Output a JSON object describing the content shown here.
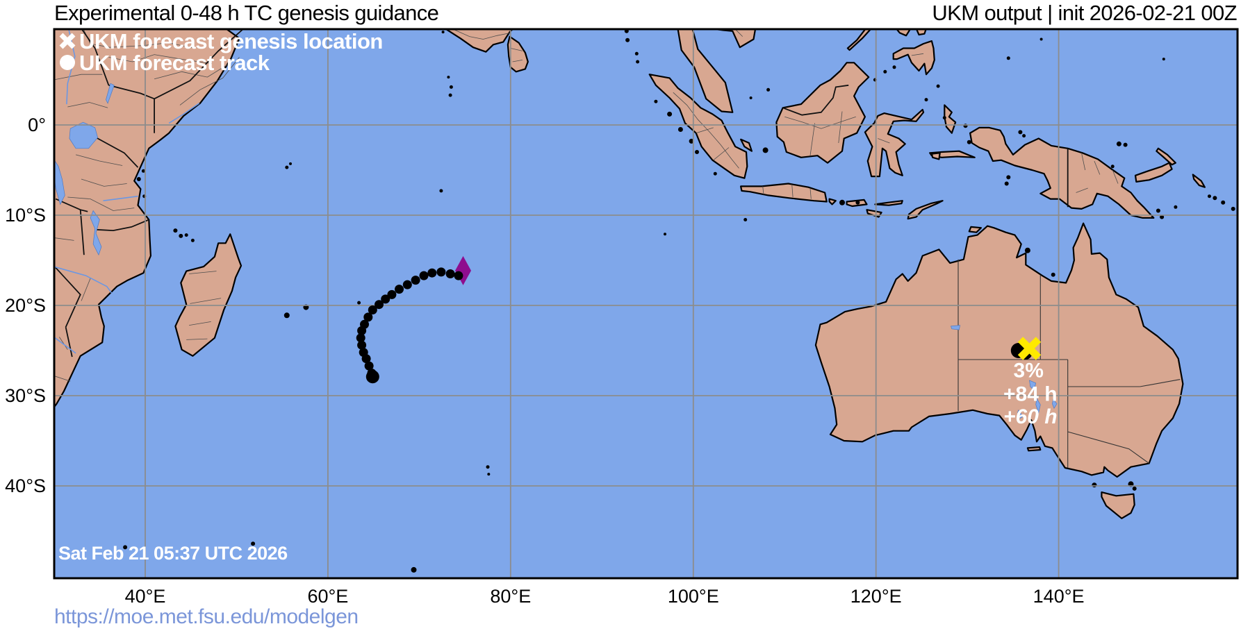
{
  "header": {
    "title_left": "Experimental 0-48 h TC genesis guidance",
    "title_right": "UKM output | init 2026-02-21 00Z"
  },
  "legend": {
    "text_color": "#ffffff",
    "items": [
      {
        "marker": "x",
        "label": "UKM forecast genesis location"
      },
      {
        "marker": "dot",
        "label": "UKM forecast track"
      }
    ]
  },
  "map": {
    "timestamp": "Sat Feb 21 05:37 UTC 2026",
    "extent": {
      "lon_min": 30.0,
      "lon_max": 159.6,
      "lat_min": -50.2,
      "lat_max": 10.8
    },
    "colors": {
      "ocean": "#7FA7EA",
      "land": "#D8A791",
      "coast": "#000000",
      "grid": "#8C8C8C",
      "border": "#000000",
      "river": "#6B97E3",
      "admin": "#4d4d4d"
    }
  },
  "axes": {
    "lon_ticks": [
      {
        "label": "40°E",
        "value": 40
      },
      {
        "label": "60°E",
        "value": 60
      },
      {
        "label": "80°E",
        "value": 80
      },
      {
        "label": "100°E",
        "value": 100
      },
      {
        "label": "120°E",
        "value": 120
      },
      {
        "label": "140°E",
        "value": 140
      }
    ],
    "lat_ticks": [
      {
        "label": "0°",
        "value": 0
      },
      {
        "label": "10°S",
        "value": -10
      },
      {
        "label": "20°S",
        "value": -20
      },
      {
        "label": "30°S",
        "value": -30
      },
      {
        "label": "40°S",
        "value": -40
      }
    ]
  },
  "chart_data": {
    "type": "map-track",
    "model": "UKM",
    "init_time": "2026-02-21 00Z",
    "systems": [
      {
        "id": "south-indian-ocean-system",
        "start_marker": {
          "shape": "diamond",
          "color": "#8E0D8E",
          "lon": 74.8,
          "lat": -16.15
        },
        "track_color": "#000000",
        "dot_radius": 6.5,
        "end_dot_radius": 9.5,
        "track": [
          [
            74.3,
            -16.7
          ],
          [
            73.4,
            -16.5
          ],
          [
            72.4,
            -16.3
          ],
          [
            71.4,
            -16.4
          ],
          [
            70.5,
            -16.7
          ],
          [
            69.6,
            -17.2
          ],
          [
            68.7,
            -17.7
          ],
          [
            67.8,
            -18.2
          ],
          [
            67.0,
            -18.8
          ],
          [
            66.3,
            -19.3
          ],
          [
            65.6,
            -19.9
          ],
          [
            64.9,
            -20.5
          ],
          [
            64.4,
            -21.3
          ],
          [
            64.0,
            -22.1
          ],
          [
            63.7,
            -22.8
          ],
          [
            63.6,
            -23.6
          ],
          [
            63.7,
            -24.4
          ],
          [
            63.9,
            -25.2
          ],
          [
            64.2,
            -25.9
          ],
          [
            64.5,
            -26.7
          ],
          [
            64.8,
            -27.5
          ],
          [
            64.9,
            -27.9
          ]
        ],
        "labels": []
      },
      {
        "id": "australia-system",
        "genesis_marker": {
          "shape": "x",
          "color": "#FFE900",
          "lon": 136.8,
          "lat": -24.77
        },
        "track_color": "#000000",
        "dot_radii": [
          11,
          9
        ],
        "track": [
          [
            135.6,
            -25.0
          ],
          [
            136.4,
            -25.3
          ]
        ],
        "labels": [
          {
            "text": "3%",
            "lon": 136.7,
            "lat": -27.2,
            "style": "bold"
          },
          {
            "text": "+84 h",
            "lon": 136.9,
            "lat": -29.8,
            "style": "bold"
          },
          {
            "text": "+60 h",
            "lon": 136.9,
            "lat": -32.3,
            "style": "bold-italic"
          }
        ]
      }
    ]
  },
  "footer": {
    "url": "https://moe.met.fsu.edu/modelgen"
  }
}
